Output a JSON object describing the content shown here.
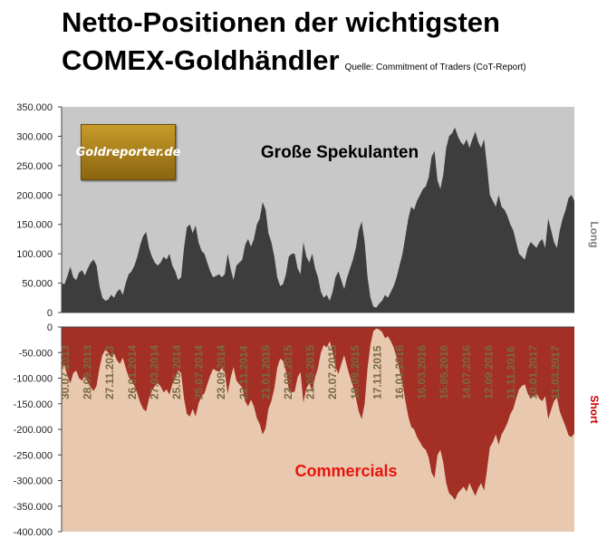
{
  "title_line1": "Netto-Positionen der wichtigsten",
  "title_line2": "COMEX-Goldhändler",
  "source": "Quelle: Commitment of Traders (CoT-Report)",
  "logo_text": "Goldreporter.de",
  "colors": {
    "top_bg": "#c8c8c8",
    "top_fill": "#3d3d3d",
    "bottom_bg": "#e8c9b0",
    "bottom_fill": "#a32f25",
    "long_label": "#808080",
    "short_label": "#cc0000",
    "commercials_text": "#e8140a"
  },
  "chart_data": [
    {
      "type": "area",
      "label": "Große Spekulanten",
      "side_label": "Long",
      "ylim": [
        0,
        350000
      ],
      "yticks": [
        "350.000",
        "300.000",
        "250.000",
        "200.000",
        "150.000",
        "100.000",
        "50.000",
        "0"
      ],
      "grid": false,
      "values": [
        50000,
        48000,
        62000,
        78000,
        60000,
        55000,
        68000,
        72000,
        63000,
        75000,
        85000,
        90000,
        80000,
        45000,
        25000,
        20000,
        22000,
        30000,
        25000,
        35000,
        40000,
        30000,
        50000,
        65000,
        70000,
        80000,
        95000,
        115000,
        130000,
        137000,
        110000,
        95000,
        85000,
        80000,
        85000,
        95000,
        90000,
        100000,
        80000,
        70000,
        55000,
        60000,
        110000,
        145000,
        150000,
        135000,
        148000,
        120000,
        105000,
        100000,
        85000,
        70000,
        60000,
        62000,
        65000,
        60000,
        65000,
        100000,
        75000,
        55000,
        80000,
        85000,
        90000,
        115000,
        125000,
        112000,
        125000,
        150000,
        160000,
        188000,
        175000,
        135000,
        120000,
        95000,
        60000,
        45000,
        48000,
        65000,
        95000,
        100000,
        100000,
        75000,
        65000,
        120000,
        95000,
        85000,
        100000,
        75000,
        60000,
        35000,
        25000,
        30000,
        20000,
        35000,
        60000,
        70000,
        55000,
        40000,
        60000,
        75000,
        90000,
        110000,
        140000,
        155000,
        120000,
        60000,
        25000,
        10000,
        8000,
        15000,
        20000,
        30000,
        25000,
        35000,
        45000,
        60000,
        80000,
        100000,
        130000,
        160000,
        180000,
        175000,
        190000,
        200000,
        210000,
        215000,
        230000,
        265000,
        275000,
        225000,
        210000,
        235000,
        280000,
        300000,
        305000,
        315000,
        300000,
        290000,
        285000,
        295000,
        280000,
        295000,
        308000,
        290000,
        280000,
        295000,
        250000,
        200000,
        190000,
        180000,
        200000,
        180000,
        175000,
        165000,
        150000,
        140000,
        120000,
        100000,
        95000,
        90000,
        110000,
        120000,
        115000,
        110000,
        120000,
        125000,
        110000,
        160000,
        140000,
        120000,
        110000,
        140000,
        160000,
        175000,
        195000,
        200000,
        190000
      ]
    },
    {
      "type": "area",
      "label": "Commercials",
      "side_label": "Short",
      "ylim": [
        -400000,
        0
      ],
      "yticks": [
        "0",
        "-50.000",
        "-100.000",
        "-150.000",
        "-200.000",
        "-250.000",
        "-300.000",
        "-350.000",
        "-400.000"
      ],
      "grid": false,
      "x_ticks": [
        "30.07.2013",
        "28.09.2013",
        "27.11.2013",
        "26.01.2014",
        "27.03.2014",
        "25.05.2014",
        "25.07.2014",
        "23.09.2014",
        "22.11.2014",
        "21.01.2015",
        "22.03.2015",
        "21.05.2015",
        "20.07.2015",
        "18.09.2015",
        "17.11.2015",
        "16.01.2016",
        "16.03.2016",
        "15.05.2016",
        "14.07.2016",
        "12.09.2016",
        "11.11.2016",
        "10.01.2017",
        "11.03.2017"
      ],
      "values": [
        -80000,
        -75000,
        -95000,
        -110000,
        -90000,
        -85000,
        -100000,
        -105000,
        -95000,
        -108000,
        -118000,
        -125000,
        -115000,
        -80000,
        -55000,
        -45000,
        -50000,
        -60000,
        -52000,
        -65000,
        -72000,
        -60000,
        -80000,
        -98000,
        -105000,
        -115000,
        -130000,
        -148000,
        -160000,
        -165000,
        -140000,
        -125000,
        -115000,
        -110000,
        -116000,
        -128000,
        -122000,
        -132000,
        -112000,
        -100000,
        -85000,
        -90000,
        -140000,
        -170000,
        -175000,
        -160000,
        -175000,
        -150000,
        -135000,
        -130000,
        -112000,
        -95000,
        -82000,
        -85000,
        -88000,
        -80000,
        -88000,
        -130000,
        -100000,
        -78000,
        -105000,
        -112000,
        -118000,
        -145000,
        -155000,
        -142000,
        -155000,
        -178000,
        -190000,
        -210000,
        -198000,
        -160000,
        -145000,
        -120000,
        -80000,
        -62000,
        -66000,
        -86000,
        -122000,
        -128000,
        -126000,
        -98000,
        -88000,
        -148000,
        -120000,
        -110000,
        -125000,
        -98000,
        -80000,
        -50000,
        -35000,
        -40000,
        -28000,
        -48000,
        -78000,
        -92000,
        -72000,
        -55000,
        -78000,
        -98000,
        -115000,
        -138000,
        -165000,
        -180000,
        -150000,
        -80000,
        -35000,
        -8000,
        -3000,
        -5000,
        -10000,
        -22000,
        -18000,
        -28000,
        -40000,
        -60000,
        -85000,
        -110000,
        -145000,
        -175000,
        -195000,
        -200000,
        -215000,
        -225000,
        -235000,
        -240000,
        -255000,
        -285000,
        -295000,
        -250000,
        -240000,
        -265000,
        -305000,
        -325000,
        -330000,
        -338000,
        -325000,
        -318000,
        -312000,
        -322000,
        -305000,
        -318000,
        -330000,
        -315000,
        -305000,
        -320000,
        -280000,
        -235000,
        -225000,
        -210000,
        -230000,
        -210000,
        -200000,
        -188000,
        -170000,
        -160000,
        -140000,
        -122000,
        -115000,
        -112000,
        -130000,
        -140000,
        -135000,
        -130000,
        -140000,
        -145000,
        -135000,
        -180000,
        -162000,
        -145000,
        -138000,
        -165000,
        -180000,
        -195000,
        -212000,
        -215000,
        -208000
      ]
    }
  ]
}
